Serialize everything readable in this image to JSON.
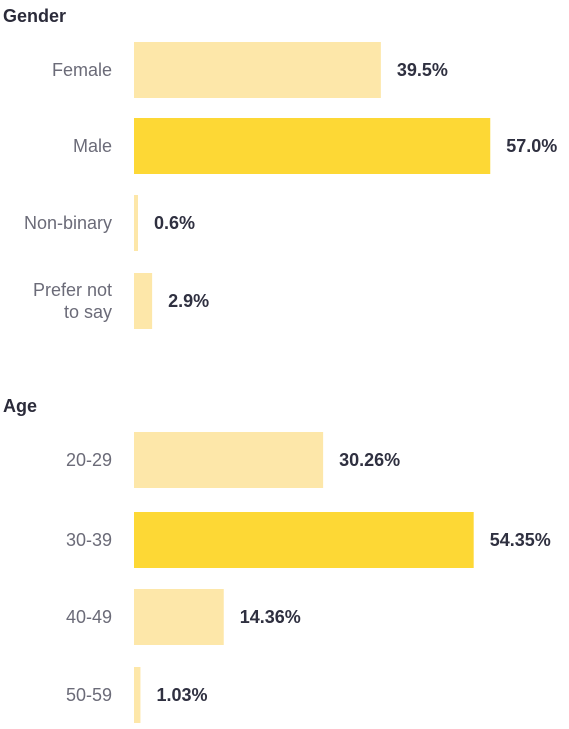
{
  "chart_data": [
    {
      "type": "bar",
      "orientation": "horizontal",
      "title": "Gender",
      "categories": [
        "Female",
        "Male",
        "Non-binary",
        "Prefer not to say"
      ],
      "category_lines": [
        [
          "Female"
        ],
        [
          "Male"
        ],
        [
          "Non-binary"
        ],
        [
          "Prefer not",
          "to say"
        ]
      ],
      "values": [
        39.5,
        57.0,
        0.6,
        2.9
      ],
      "value_labels": [
        "39.5%",
        "57.0%",
        "0.6%",
        "2.9%"
      ],
      "highlight_index": 1,
      "xlim": [
        0,
        100
      ],
      "grid": false,
      "legend": "none"
    },
    {
      "type": "bar",
      "orientation": "horizontal",
      "title": "Age",
      "categories": [
        "20-29",
        "30-39",
        "40-49",
        "50-59"
      ],
      "category_lines": [
        [
          "20-29"
        ],
        [
          "30-39"
        ],
        [
          "40-49"
        ],
        [
          "50-59"
        ]
      ],
      "values": [
        30.26,
        54.35,
        14.36,
        1.03
      ],
      "value_labels": [
        "30.26%",
        "54.35%",
        "14.36%",
        "1.03%"
      ],
      "highlight_index": 1,
      "xlim": [
        0,
        100
      ],
      "grid": false,
      "legend": "none"
    }
  ],
  "colors": {
    "bar": "#fde7a9",
    "bar_highlight": "#fdd835",
    "category_text": "#6b6b78",
    "value_text": "#2f3040",
    "title_text": "#2b2b3a"
  }
}
